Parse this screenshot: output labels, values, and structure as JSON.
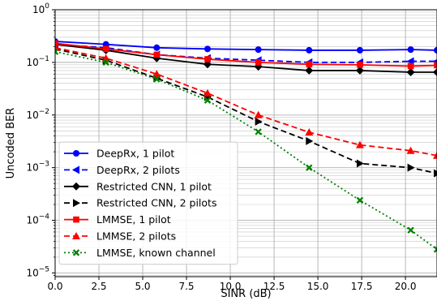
{
  "chart_data": {
    "type": "line",
    "title": "",
    "xlabel": "SINR (dB)",
    "ylabel": "Uncoded BER",
    "xlim": [
      0,
      21.8
    ],
    "ylim": [
      8.5e-06,
      1
    ],
    "yscale": "log",
    "grid": "on (major and minor)",
    "legend_position": "lower-left",
    "x_ticks": [
      {
        "value": 0,
        "label": "0.0"
      },
      {
        "value": 2.5,
        "label": "2.5"
      },
      {
        "value": 5,
        "label": "5.0"
      },
      {
        "value": 7.5,
        "label": "7.5"
      },
      {
        "value": 10,
        "label": "10.0"
      },
      {
        "value": 12.5,
        "label": "12.5"
      },
      {
        "value": 15,
        "label": "15.0"
      },
      {
        "value": 17.5,
        "label": "17.5"
      },
      {
        "value": 20,
        "label": "20.0"
      }
    ],
    "y_ticks": [
      {
        "value": 1,
        "base": "10",
        "exp": "0"
      },
      {
        "value": 0.1,
        "base": "10",
        "exp": "−1"
      },
      {
        "value": 0.01,
        "base": "10",
        "exp": "−2"
      },
      {
        "value": 0.001,
        "base": "10",
        "exp": "−3"
      },
      {
        "value": 0.0001,
        "base": "10",
        "exp": "−4"
      },
      {
        "value": 1e-05,
        "base": "10",
        "exp": "−5"
      }
    ],
    "series": [
      {
        "name": "DeepRx, 1 pilot",
        "color": "#0000ff",
        "dash": "solid",
        "marker": "circle",
        "x": [
          0,
          2.9,
          5.8,
          8.7,
          11.6,
          14.5,
          17.4,
          20.3,
          21.8
        ],
        "y": [
          0.25,
          0.22,
          0.19,
          0.18,
          0.175,
          0.17,
          0.17,
          0.175,
          0.17
        ]
      },
      {
        "name": "DeepRx, 2 pilots",
        "color": "#0000ff",
        "dash": "dashed",
        "marker": "triangle-left",
        "x": [
          0,
          2.9,
          5.8,
          8.7,
          11.6,
          14.5,
          17.4,
          20.3,
          21.8
        ],
        "y": [
          0.22,
          0.19,
          0.14,
          0.12,
          0.11,
          0.1,
          0.1,
          0.105,
          0.105
        ]
      },
      {
        "name": "Restricted CNN, 1 pilot",
        "color": "#000000",
        "dash": "solid",
        "marker": "diamond",
        "x": [
          0,
          2.9,
          5.8,
          8.7,
          11.6,
          14.5,
          17.4,
          20.3,
          21.8
        ],
        "y": [
          0.22,
          0.17,
          0.12,
          0.092,
          0.083,
          0.07,
          0.07,
          0.065,
          0.065
        ]
      },
      {
        "name": "Restricted CNN, 2 pilots",
        "color": "#000000",
        "dash": "dashed",
        "marker": "triangle-right",
        "x": [
          0,
          2.9,
          5.8,
          8.7,
          11.6,
          14.5,
          17.4,
          20.3,
          21.8
        ],
        "y": [
          0.18,
          0.11,
          0.05,
          0.022,
          0.0075,
          0.0032,
          0.0012,
          0.001,
          0.00078
        ]
      },
      {
        "name": "LMMSE, 1 pilot",
        "color": "#ff0000",
        "dash": "solid",
        "marker": "square",
        "x": [
          0,
          2.9,
          5.8,
          8.7,
          11.6,
          14.5,
          17.4,
          20.3,
          21.8
        ],
        "y": [
          0.23,
          0.18,
          0.14,
          0.115,
          0.1,
          0.092,
          0.09,
          0.085,
          0.088
        ]
      },
      {
        "name": "LMMSE, 2 pilots",
        "color": "#ff0000",
        "dash": "dashed",
        "marker": "triangle-up",
        "x": [
          0,
          2.9,
          5.8,
          8.7,
          11.6,
          14.5,
          17.4,
          20.3,
          21.8
        ],
        "y": [
          0.19,
          0.12,
          0.06,
          0.026,
          0.01,
          0.0047,
          0.0027,
          0.0021,
          0.0017
        ]
      },
      {
        "name": "LMMSE, known channel",
        "color": "#008000",
        "dash": "dotted",
        "marker": "x-filled",
        "x": [
          0,
          2.9,
          5.8,
          8.7,
          11.6,
          14.5,
          17.4,
          20.3,
          21.8
        ],
        "y": [
          0.16,
          0.1,
          0.048,
          0.019,
          0.0048,
          0.001,
          0.00024,
          6.5e-05,
          2.8e-05
        ]
      }
    ]
  }
}
